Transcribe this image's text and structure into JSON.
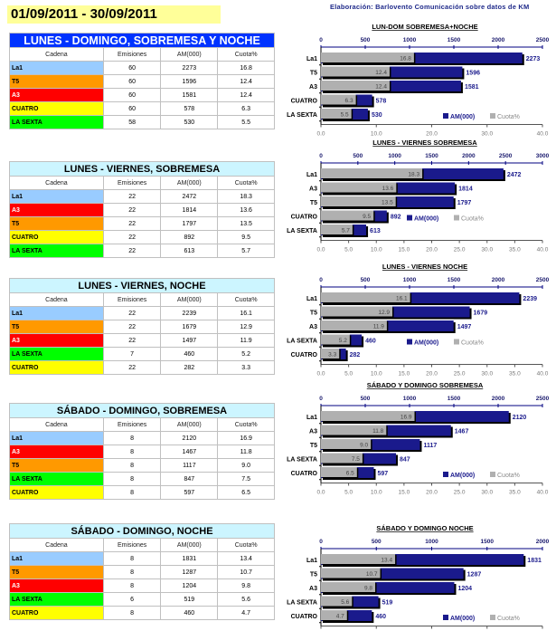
{
  "header": {
    "date_range": "01/09/2011 - 30/09/2011",
    "credit": "Elaboración: Barlovento Comunicación sobre datos de KM"
  },
  "colors": {
    "La1": "#99ccff",
    "T5": "#ff9900",
    "A3": "#ff0000",
    "CUATRO": "#ffff00",
    "LA SEXTA": "#00ff00",
    "am_bar": "#1a1a8c",
    "cuota_bar": "#b0b0b0",
    "title_blue": "#0033ff",
    "title_cyan": "#ccf5ff"
  },
  "columns": [
    "Cadena",
    "Emisiones",
    "AM(000)",
    "Cuota%"
  ],
  "tables": [
    {
      "title": "LUNES - DOMINGO, SOBREMESA Y NOCHE",
      "rows": [
        {
          "cadena": "La1",
          "emisiones": "60",
          "am": "2273",
          "cuota": "16.8"
        },
        {
          "cadena": "T5",
          "emisiones": "60",
          "am": "1596",
          "cuota": "12.4"
        },
        {
          "cadena": "A3",
          "emisiones": "60",
          "am": "1581",
          "cuota": "12.4"
        },
        {
          "cadena": "CUATRO",
          "emisiones": "60",
          "am": "578",
          "cuota": "6.3"
        },
        {
          "cadena": "LA SEXTA",
          "emisiones": "58",
          "am": "530",
          "cuota": "5.5"
        }
      ]
    },
    {
      "title": "LUNES - VIERNES, SOBREMESA",
      "rows": [
        {
          "cadena": "La1",
          "emisiones": "22",
          "am": "2472",
          "cuota": "18.3"
        },
        {
          "cadena": "A3",
          "emisiones": "22",
          "am": "1814",
          "cuota": "13.6"
        },
        {
          "cadena": "T5",
          "emisiones": "22",
          "am": "1797",
          "cuota": "13.5"
        },
        {
          "cadena": "CUATRO",
          "emisiones": "22",
          "am": "892",
          "cuota": "9.5"
        },
        {
          "cadena": "LA SEXTA",
          "emisiones": "22",
          "am": "613",
          "cuota": "5.7"
        }
      ]
    },
    {
      "title": "LUNES - VIERNES, NOCHE",
      "rows": [
        {
          "cadena": "La1",
          "emisiones": "22",
          "am": "2239",
          "cuota": "16.1"
        },
        {
          "cadena": "T5",
          "emisiones": "22",
          "am": "1679",
          "cuota": "12.9"
        },
        {
          "cadena": "A3",
          "emisiones": "22",
          "am": "1497",
          "cuota": "11.9"
        },
        {
          "cadena": "LA SEXTA",
          "emisiones": "7",
          "am": "460",
          "cuota": "5.2"
        },
        {
          "cadena": "CUATRO",
          "emisiones": "22",
          "am": "282",
          "cuota": "3.3"
        }
      ]
    },
    {
      "title": "SÁBADO - DOMINGO, SOBREMESA",
      "rows": [
        {
          "cadena": "La1",
          "emisiones": "8",
          "am": "2120",
          "cuota": "16.9"
        },
        {
          "cadena": "A3",
          "emisiones": "8",
          "am": "1467",
          "cuota": "11.8"
        },
        {
          "cadena": "T5",
          "emisiones": "8",
          "am": "1117",
          "cuota": "9.0"
        },
        {
          "cadena": "LA SEXTA",
          "emisiones": "8",
          "am": "847",
          "cuota": "7.5"
        },
        {
          "cadena": "CUATRO",
          "emisiones": "8",
          "am": "597",
          "cuota": "6.5"
        }
      ]
    },
    {
      "title": "SÁBADO - DOMINGO, NOCHE",
      "rows": [
        {
          "cadena": "La1",
          "emisiones": "8",
          "am": "1831",
          "cuota": "13.4"
        },
        {
          "cadena": "T5",
          "emisiones": "8",
          "am": "1287",
          "cuota": "10.7"
        },
        {
          "cadena": "A3",
          "emisiones": "8",
          "am": "1204",
          "cuota": "9.8"
        },
        {
          "cadena": "LA SEXTA",
          "emisiones": "6",
          "am": "519",
          "cuota": "5.6"
        },
        {
          "cadena": "CUATRO",
          "emisiones": "8",
          "am": "460",
          "cuota": "4.7"
        }
      ]
    }
  ],
  "chart_data": [
    {
      "type": "bar",
      "title": "LUN-DOM  SOBREMESA+NOCHE",
      "categories": [
        "La1",
        "T5",
        "A3",
        "CUATRO",
        "LA SEXTA"
      ],
      "series": [
        {
          "name": "AM(000)",
          "values": [
            2273,
            1596,
            1581,
            578,
            530
          ],
          "axis": "top",
          "range": [
            0,
            2500
          ],
          "ticks": [
            "0",
            "500",
            "1000",
            "1500",
            "2000",
            "2500"
          ]
        },
        {
          "name": "Cuota%",
          "values": [
            16.8,
            12.4,
            12.4,
            6.3,
            5.5
          ],
          "axis": "bottom",
          "range": [
            0,
            40
          ],
          "ticks": [
            "0.0",
            "10.0",
            "20.0",
            "30.0",
            "40.0"
          ]
        }
      ],
      "legend": "bottom-right"
    },
    {
      "type": "bar",
      "title": "LUNES - VIERNES SOBREMESA",
      "categories": [
        "La1",
        "A3",
        "T5",
        "CUATRO",
        "LA SEXTA"
      ],
      "series": [
        {
          "name": "AM(000)",
          "values": [
            2472,
            1814,
            1797,
            892,
            613
          ],
          "axis": "top",
          "range": [
            0,
            3000
          ],
          "ticks": [
            "0",
            "500",
            "1000",
            "1500",
            "2000",
            "2500",
            "3000"
          ]
        },
        {
          "name": "Cuota%",
          "values": [
            18.3,
            13.6,
            13.5,
            9.5,
            5.7
          ],
          "axis": "bottom",
          "range": [
            0,
            40
          ],
          "ticks": [
            "0.0",
            "5.0",
            "10.0",
            "15.0",
            "20.0",
            "25.0",
            "30.0",
            "35.0",
            "40.0"
          ]
        }
      ],
      "legend": "bottom-center"
    },
    {
      "type": "bar",
      "title": "LUNES - VIERNES  NOCHE",
      "categories": [
        "La1",
        "T5",
        "A3",
        "LA SEXTA",
        "CUATRO"
      ],
      "series": [
        {
          "name": "AM(000)",
          "values": [
            2239,
            1679,
            1497,
            460,
            282
          ],
          "axis": "top",
          "range": [
            0,
            2500
          ],
          "ticks": [
            "0",
            "500",
            "1000",
            "1500",
            "2000",
            "2500"
          ]
        },
        {
          "name": "Cuota%",
          "values": [
            16.1,
            12.9,
            11.9,
            5.2,
            3.3
          ],
          "axis": "bottom",
          "range": [
            0,
            40
          ],
          "ticks": [
            "0.0",
            "5.0",
            "10.0",
            "15.0",
            "20.0",
            "25.0",
            "30.0",
            "35.0",
            "40.0"
          ]
        }
      ],
      "legend": "bottom-center"
    },
    {
      "type": "bar",
      "title": "SÁBADO Y DOMINGO SOBREMESA",
      "categories": [
        "La1",
        "A3",
        "T5",
        "LA SEXTA",
        "CUATRO"
      ],
      "series": [
        {
          "name": "AM(000)",
          "values": [
            2120,
            1467,
            1117,
            847,
            597
          ],
          "axis": "top",
          "range": [
            0,
            2500
          ],
          "ticks": [
            "0",
            "500",
            "1000",
            "1500",
            "2000",
            "2500"
          ]
        },
        {
          "name": "Cuota%",
          "values": [
            16.9,
            11.8,
            9.0,
            7.5,
            6.5
          ],
          "axis": "bottom",
          "range": [
            0,
            40
          ],
          "ticks": [
            "0.0",
            "5.0",
            "10.0",
            "15.0",
            "20.0",
            "25.0",
            "30.0",
            "35.0",
            "40.0"
          ]
        }
      ],
      "legend": "bottom-right"
    },
    {
      "type": "bar",
      "title": "SÁBADO Y DOMINGO  NOCHE",
      "categories": [
        "La1",
        "T5",
        "A3",
        "LA SEXTA",
        "CUATRO"
      ],
      "series": [
        {
          "name": "AM(000)",
          "values": [
            1831,
            1287,
            1204,
            519,
            460
          ],
          "axis": "top",
          "range": [
            0,
            2000
          ],
          "ticks": [
            "0",
            "500",
            "1000",
            "1500",
            "2000"
          ]
        },
        {
          "name": "Cuota%",
          "values": [
            13.4,
            10.7,
            9.8,
            5.6,
            4.7
          ],
          "axis": "bottom",
          "range": [
            0,
            40
          ],
          "ticks": [
            "0.0",
            "10.0",
            "20.0",
            "30.0",
            "40.0"
          ]
        }
      ],
      "legend": "bottom-right"
    }
  ]
}
